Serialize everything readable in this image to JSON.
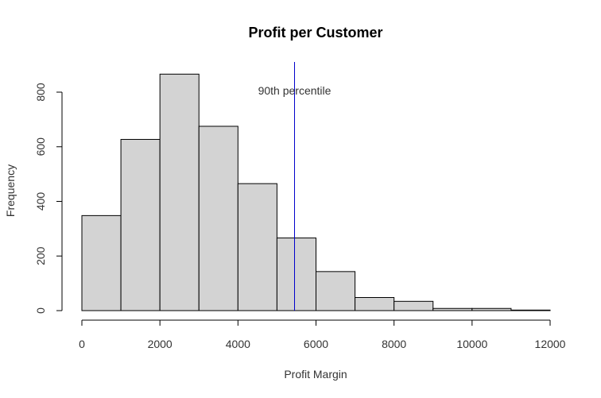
{
  "chart_data": {
    "type": "bar",
    "title": "Profit per Customer",
    "xlabel": "Profit Margin",
    "ylabel": "Frequency",
    "bins": [
      {
        "x0": 0,
        "x1": 1000,
        "count": 348
      },
      {
        "x0": 1000,
        "x1": 2000,
        "count": 627
      },
      {
        "x0": 2000,
        "x1": 3000,
        "count": 866
      },
      {
        "x0": 3000,
        "x1": 4000,
        "count": 675
      },
      {
        "x0": 4000,
        "x1": 5000,
        "count": 465
      },
      {
        "x0": 5000,
        "x1": 6000,
        "count": 266
      },
      {
        "x0": 6000,
        "x1": 7000,
        "count": 143
      },
      {
        "x0": 7000,
        "x1": 8000,
        "count": 48
      },
      {
        "x0": 8000,
        "x1": 9000,
        "count": 34
      },
      {
        "x0": 9000,
        "x1": 10000,
        "count": 8
      },
      {
        "x0": 10000,
        "x1": 11000,
        "count": 8
      },
      {
        "x0": 11000,
        "x1": 12000,
        "count": 2
      }
    ],
    "xlim": [
      0,
      12000
    ],
    "ylim": [
      0,
      800
    ],
    "xticks": [
      0,
      2000,
      4000,
      6000,
      8000,
      10000,
      12000
    ],
    "yticks": [
      0,
      200,
      400,
      600,
      800
    ],
    "reference_line": {
      "x": 5450,
      "label": "90th percentile",
      "color": "#0000cc"
    },
    "grid": false,
    "legend": "none"
  }
}
